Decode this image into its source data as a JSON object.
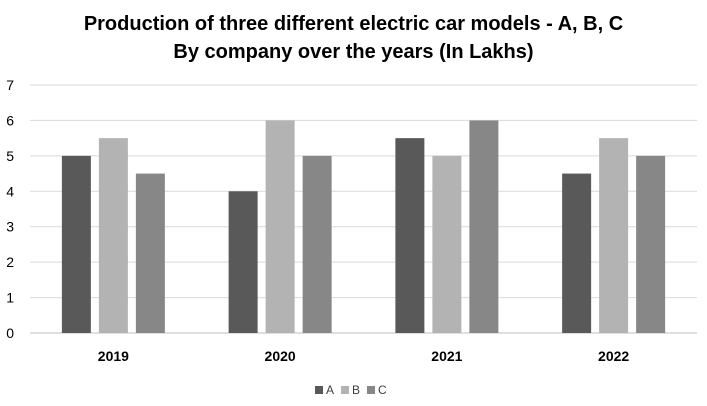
{
  "chart_data": {
    "type": "bar",
    "title": "Production of three different electric car models - A, B, C",
    "subtitle": "By company over the years (In Lakhs)",
    "categories": [
      "2019",
      "2020",
      "2021",
      "2022"
    ],
    "series": [
      {
        "name": "A",
        "color": "#595959",
        "values": [
          5,
          4,
          5.5,
          4.5
        ]
      },
      {
        "name": "B",
        "color": "#b3b3b3",
        "values": [
          5.5,
          6,
          5,
          5.5
        ]
      },
      {
        "name": "C",
        "color": "#878787",
        "values": [
          4.5,
          5,
          6,
          5
        ]
      }
    ],
    "ylim": [
      0,
      7
    ],
    "yticks": [
      "0",
      "1",
      "2",
      "3",
      "4",
      "5",
      "6",
      "7"
    ],
    "grid": true,
    "legend": "bottom-center"
  }
}
